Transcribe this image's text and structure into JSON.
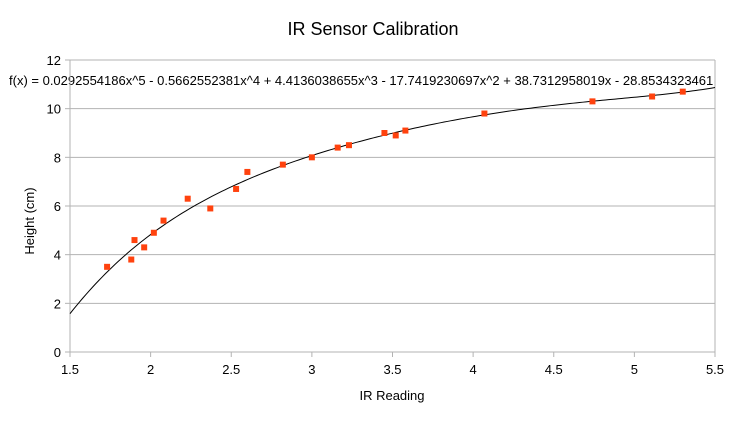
{
  "chart_data": {
    "type": "scatter",
    "title": "IR Sensor Calibration",
    "xlabel": "IR Reading",
    "ylabel": "Height (cm)",
    "xlim": [
      1.5,
      5.5
    ],
    "ylim": [
      0,
      12
    ],
    "x_ticks": [
      "1.5",
      "2",
      "2.5",
      "3",
      "3.5",
      "4",
      "4.5",
      "5",
      "5.5"
    ],
    "y_ticks": [
      "0",
      "2",
      "4",
      "6",
      "8",
      "10",
      "12"
    ],
    "grid": "horizontal",
    "legend": "none",
    "marker_color": "#ff420e",
    "trendline": {
      "type": "polynomial",
      "degree": 5,
      "equation": "f(x) = 0.0292554186x^5 - 0.5662552381x^4 + 4.4136038655x^3 - 17.7419230697x^2 + 38.7312958019x - 28.8534323461",
      "coefficients": [
        0.0292554186,
        -0.5662552381,
        4.4136038655,
        -17.7419230697,
        38.7312958019,
        -28.8534323461
      ],
      "x_range": [
        1.5,
        5.5
      ],
      "color": "#000000"
    },
    "series": [
      {
        "x": [
          1.73,
          1.88,
          1.9,
          1.96,
          2.02,
          2.08,
          2.23,
          2.37,
          2.53,
          2.6,
          2.82,
          3.0,
          3.16,
          3.23,
          3.45,
          3.52,
          3.58,
          4.07,
          4.74,
          5.11,
          5.3
        ],
        "y": [
          3.5,
          3.8,
          4.6,
          4.3,
          4.9,
          5.4,
          6.3,
          5.9,
          6.7,
          7.4,
          7.7,
          8.0,
          8.4,
          8.5,
          9.0,
          8.9,
          9.1,
          9.8,
          10.3,
          10.5,
          10.7
        ]
      }
    ]
  }
}
